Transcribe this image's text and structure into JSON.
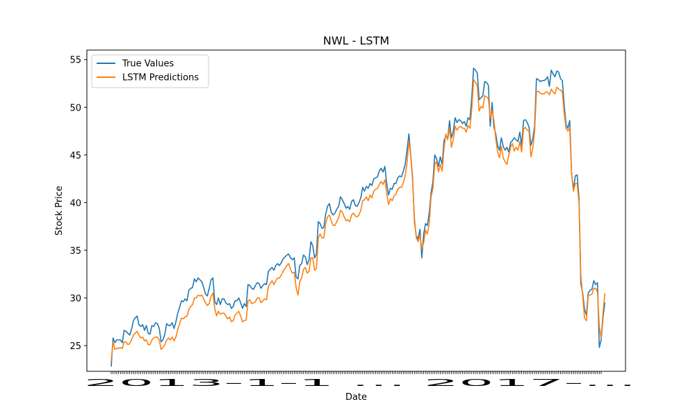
{
  "chart_data": {
    "type": "line",
    "title": "NWL - LSTM",
    "xlabel": "Date",
    "ylabel": "Stock Price",
    "ylim": [
      22.3,
      56.0
    ],
    "yticks": [
      25,
      30,
      35,
      40,
      45,
      50,
      55
    ],
    "grid": false,
    "legend_position": "upper left",
    "x_count": 266,
    "x_tick_labels_overlapping": "2013-1-1 … 2017-...",
    "series": [
      {
        "name": "True Values",
        "color": "#1f77b4",
        "values": [
          22.8,
          25.8,
          25.3,
          25.6,
          25.6,
          25.6,
          25.3,
          26.6,
          26.5,
          26.3,
          26.1,
          26.7,
          27.6,
          27.9,
          28.1,
          27.2,
          27.0,
          27.2,
          26.6,
          27.1,
          26.3,
          26.2,
          27.1,
          27.0,
          27.4,
          27.3,
          26.8,
          25.4,
          25.6,
          26.2,
          27.3,
          27.1,
          27.1,
          27.4,
          26.8,
          27.5,
          28.4,
          29.0,
          29.7,
          29.6,
          29.9,
          29.7,
          30.8,
          31.0,
          31.1,
          32.0,
          31.7,
          32.1,
          31.9,
          31.7,
          31.1,
          30.4,
          30.2,
          31.0,
          31.9,
          32.1,
          29.6,
          29.3,
          30.0,
          29.3,
          29.9,
          29.9,
          29.5,
          29.3,
          29.4,
          28.9,
          29.1,
          29.7,
          29.7,
          30.0,
          29.5,
          28.9,
          29.4,
          29.1,
          31.4,
          31.3,
          31.0,
          30.9,
          31.3,
          31.6,
          31.5,
          31.0,
          31.3,
          31.5,
          31.4,
          32.8,
          33.0,
          33.2,
          32.9,
          33.4,
          33.6,
          33.4,
          33.7,
          34.1,
          34.3,
          34.5,
          34.6,
          34.2,
          34.0,
          34.2,
          32.2,
          32.0,
          33.4,
          33.6,
          34.5,
          34.3,
          33.5,
          34.0,
          35.9,
          35.5,
          34.2,
          34.6,
          38.0,
          37.8,
          37.3,
          37.4,
          38.8,
          39.6,
          39.9,
          39.0,
          38.7,
          38.9,
          39.3,
          39.6,
          40.6,
          40.3,
          39.9,
          39.4,
          39.6,
          39.3,
          40.1,
          40.3,
          39.7,
          39.6,
          40.0,
          40.5,
          41.6,
          41.2,
          41.7,
          41.5,
          42.0,
          41.8,
          42.5,
          42.6,
          42.7,
          43.3,
          43.6,
          43.2,
          43.8,
          42.0,
          40.8,
          41.5,
          41.4,
          42.0,
          42.0,
          42.6,
          42.8,
          42.7,
          43.3,
          44.0,
          45.5,
          47.2,
          45.0,
          42.6,
          38.0,
          36.5,
          36.2,
          37.2,
          34.2,
          36.7,
          37.8,
          37.6,
          38.9,
          41.0,
          42.2,
          45.0,
          44.6,
          43.8,
          44.8,
          44.0,
          46.5,
          47.0,
          46.7,
          48.6,
          46.8,
          47.4,
          48.9,
          48.4,
          48.7,
          48.6,
          48.3,
          48.5,
          48.0,
          48.9,
          48.7,
          51.0,
          54.1,
          53.9,
          53.6,
          50.8,
          51.0,
          51.2,
          52.7,
          52.6,
          52.3,
          48.0,
          50.5,
          47.9,
          47.2,
          46.0,
          45.5,
          46.8,
          45.9,
          45.5,
          45.8,
          45.3,
          46.3,
          46.5,
          46.8,
          46.6,
          46.4,
          47.4,
          46.0,
          48.6,
          48.7,
          48.4,
          47.9,
          46.0,
          46.7,
          48.0,
          53.0,
          52.9,
          52.7,
          52.8,
          52.8,
          52.9,
          53.2,
          52.2,
          53.9,
          53.5,
          53.2,
          53.8,
          53.7,
          53.0,
          52.8,
          50.2,
          48.2,
          47.8,
          48.6,
          43.0,
          41.4,
          42.8,
          42.9,
          40.5,
          31.5,
          30.5,
          28.8,
          28.2,
          30.5,
          30.8,
          30.9,
          31.8,
          31.4,
          31.6,
          24.8,
          25.6,
          28.0,
          29.5
        ]
      },
      {
        "name": "LSTM Predictions",
        "color": "#ff7f0e",
        "values": [
          23.4,
          25.4,
          24.6,
          24.7,
          24.7,
          24.8,
          24.7,
          25.4,
          25.4,
          25.1,
          25.2,
          25.6,
          26.1,
          26.3,
          26.5,
          26.1,
          25.8,
          25.9,
          25.5,
          25.6,
          25.1,
          25.1,
          25.6,
          25.8,
          25.9,
          25.9,
          25.6,
          24.6,
          24.8,
          25.1,
          25.6,
          25.8,
          25.6,
          25.9,
          25.5,
          25.9,
          26.7,
          27.3,
          27.9,
          27.8,
          28.0,
          28.1,
          28.8,
          29.1,
          29.3,
          30.0,
          30.0,
          30.3,
          30.2,
          30.3,
          29.9,
          29.5,
          29.2,
          29.4,
          30.2,
          30.5,
          28.9,
          28.1,
          28.6,
          28.3,
          28.4,
          28.4,
          28.1,
          27.8,
          28.0,
          27.5,
          27.6,
          28.2,
          28.4,
          28.6,
          28.1,
          27.5,
          27.6,
          27.7,
          29.7,
          29.8,
          29.4,
          29.5,
          29.6,
          30.0,
          30.0,
          29.5,
          29.7,
          29.9,
          29.8,
          31.2,
          31.5,
          31.8,
          31.4,
          31.8,
          32.1,
          32.1,
          32.4,
          32.8,
          33.1,
          33.4,
          33.6,
          33.0,
          32.6,
          32.7,
          31.1,
          30.3,
          31.7,
          32.1,
          33.0,
          33.2,
          32.6,
          32.8,
          34.2,
          34.2,
          32.9,
          33.1,
          36.3,
          36.7,
          36.3,
          36.3,
          37.8,
          38.5,
          38.7,
          38.1,
          37.6,
          37.6,
          38.0,
          38.4,
          39.2,
          39.0,
          38.5,
          38.1,
          38.2,
          38.0,
          38.7,
          38.9,
          38.6,
          38.5,
          38.7,
          39.2,
          40.2,
          40.3,
          40.6,
          40.2,
          40.8,
          40.5,
          41.2,
          41.4,
          41.5,
          41.9,
          42.2,
          41.9,
          42.4,
          41.0,
          39.8,
          40.4,
          40.2,
          40.7,
          40.9,
          41.4,
          41.6,
          41.6,
          42.1,
          42.8,
          44.2,
          46.5,
          44.9,
          42.3,
          38.4,
          36.3,
          35.9,
          36.6,
          35.1,
          35.8,
          37.1,
          36.7,
          37.8,
          40.6,
          41.5,
          44.0,
          44.3,
          43.2,
          44.0,
          43.3,
          45.7,
          47.2,
          46.6,
          47.9,
          45.8,
          46.6,
          48.0,
          47.6,
          47.9,
          48.0,
          47.8,
          47.8,
          47.4,
          48.1,
          47.8,
          49.8,
          52.9,
          52.6,
          52.3,
          49.6,
          50.1,
          49.9,
          51.2,
          51.1,
          50.9,
          48.8,
          49.7,
          48.6,
          46.7,
          45.3,
          44.7,
          45.9,
          44.7,
          44.3,
          44.0,
          44.9,
          45.8,
          46.2,
          45.4,
          45.8,
          45.5,
          46.4,
          45.3,
          47.7,
          47.9,
          47.6,
          47.5,
          44.8,
          45.7,
          47.5,
          51.6,
          51.7,
          51.5,
          51.4,
          51.4,
          51.6,
          51.6,
          51.3,
          51.9,
          51.6,
          51.4,
          52.1,
          51.9,
          51.8,
          51.6,
          49.4,
          47.8,
          47.5,
          47.8,
          43.0,
          41.2,
          42.0,
          42.0,
          40.0,
          32.4,
          30.2,
          27.9,
          27.6,
          30.2,
          30.3,
          30.4,
          31.0,
          31.0,
          30.6,
          27.0,
          25.8,
          28.5,
          30.5
        ]
      }
    ]
  }
}
